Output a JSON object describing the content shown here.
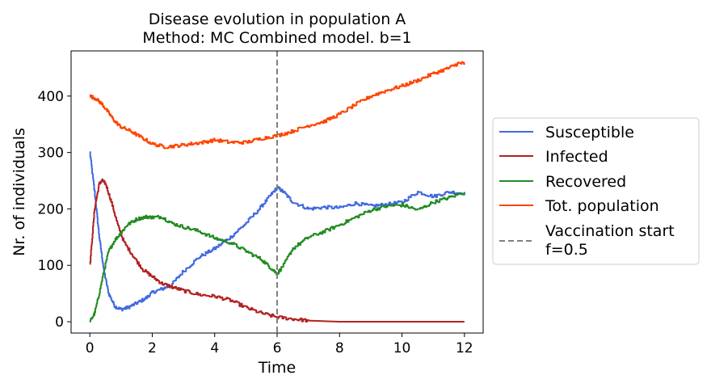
{
  "chart_data": {
    "type": "line",
    "title": [
      "Disease evolution in population A",
      "Method: MC Combined model. b=1"
    ],
    "xlabel": "Time",
    "ylabel": "Nr. of individuals",
    "xlim": [
      -0.6,
      12.6
    ],
    "ylim": [
      -20,
      480
    ],
    "xticks": [
      0,
      2,
      4,
      6,
      8,
      10,
      12
    ],
    "yticks": [
      0,
      100,
      200,
      300,
      400
    ],
    "grid": false,
    "legend_placement": "outside-right",
    "vline": {
      "x": 6,
      "label": [
        "Vaccination start",
        "f=0.5"
      ],
      "color": "#808080",
      "style": "dashed"
    },
    "series": [
      {
        "name": "Susceptible",
        "color": "#4169e1",
        "x": [
          0,
          0.15,
          0.3,
          0.45,
          0.6,
          0.8,
          1.0,
          1.2,
          1.5,
          1.8,
          2.0,
          2.3,
          2.6,
          3.0,
          3.5,
          4.0,
          4.5,
          5.0,
          5.5,
          5.8,
          6.0,
          6.2,
          6.5,
          7.0,
          7.5,
          8.0,
          8.5,
          9.0,
          9.5,
          10.0,
          10.5,
          11.0,
          11.5,
          12.0
        ],
        "y": [
          300,
          230,
          150,
          90,
          50,
          27,
          22,
          25,
          33,
          42,
          52,
          58,
          65,
          90,
          115,
          130,
          150,
          175,
          205,
          225,
          238,
          230,
          212,
          200,
          203,
          202,
          210,
          205,
          208,
          212,
          230,
          222,
          230,
          228
        ]
      },
      {
        "name": "Infected",
        "color": "#b22222",
        "x": [
          0,
          0.15,
          0.3,
          0.4,
          0.5,
          0.7,
          0.9,
          1.1,
          1.4,
          1.7,
          2.0,
          2.3,
          2.6,
          3.0,
          3.5,
          4.0,
          4.5,
          5.0,
          5.5,
          6.0,
          6.5,
          7.0,
          7.5,
          8.0,
          9.0,
          10.0,
          11.0,
          12.0
        ],
        "y": [
          100,
          200,
          245,
          250,
          245,
          210,
          170,
          140,
          115,
          92,
          80,
          68,
          62,
          55,
          48,
          45,
          38,
          25,
          15,
          8,
          5,
          2,
          1,
          0,
          0,
          0,
          0,
          0
        ]
      },
      {
        "name": "Recovered",
        "color": "#228b22",
        "x": [
          0,
          0.15,
          0.3,
          0.45,
          0.6,
          0.8,
          1.0,
          1.2,
          1.5,
          1.8,
          2.0,
          2.3,
          2.6,
          3.0,
          3.5,
          4.0,
          4.5,
          5.0,
          5.5,
          5.8,
          6.0,
          6.2,
          6.5,
          7.0,
          7.5,
          8.0,
          8.5,
          9.0,
          9.5,
          10.0,
          10.5,
          11.0,
          11.5,
          12.0
        ],
        "y": [
          0,
          15,
          50,
          90,
          125,
          145,
          158,
          172,
          182,
          186,
          185,
          186,
          175,
          168,
          160,
          148,
          140,
          125,
          110,
          95,
          85,
          100,
          130,
          150,
          160,
          172,
          185,
          198,
          205,
          207,
          198,
          212,
          220,
          230
        ]
      },
      {
        "name": "Tot. population",
        "color": "#ff4500",
        "x": [
          0,
          0.2,
          0.4,
          0.6,
          0.8,
          1.0,
          1.3,
          1.6,
          2.0,
          2.4,
          2.8,
          3.2,
          3.6,
          4.0,
          4.5,
          5.0,
          5.5,
          6.0,
          6.5,
          7.0,
          7.5,
          8.0,
          8.5,
          9.0,
          9.5,
          10.0,
          10.5,
          11.0,
          11.5,
          11.8,
          12.0
        ],
        "y": [
          400,
          395,
          385,
          370,
          355,
          345,
          338,
          328,
          315,
          310,
          312,
          315,
          318,
          322,
          318,
          318,
          325,
          330,
          338,
          348,
          355,
          368,
          385,
          400,
          410,
          418,
          428,
          440,
          450,
          458,
          458
        ]
      }
    ]
  }
}
